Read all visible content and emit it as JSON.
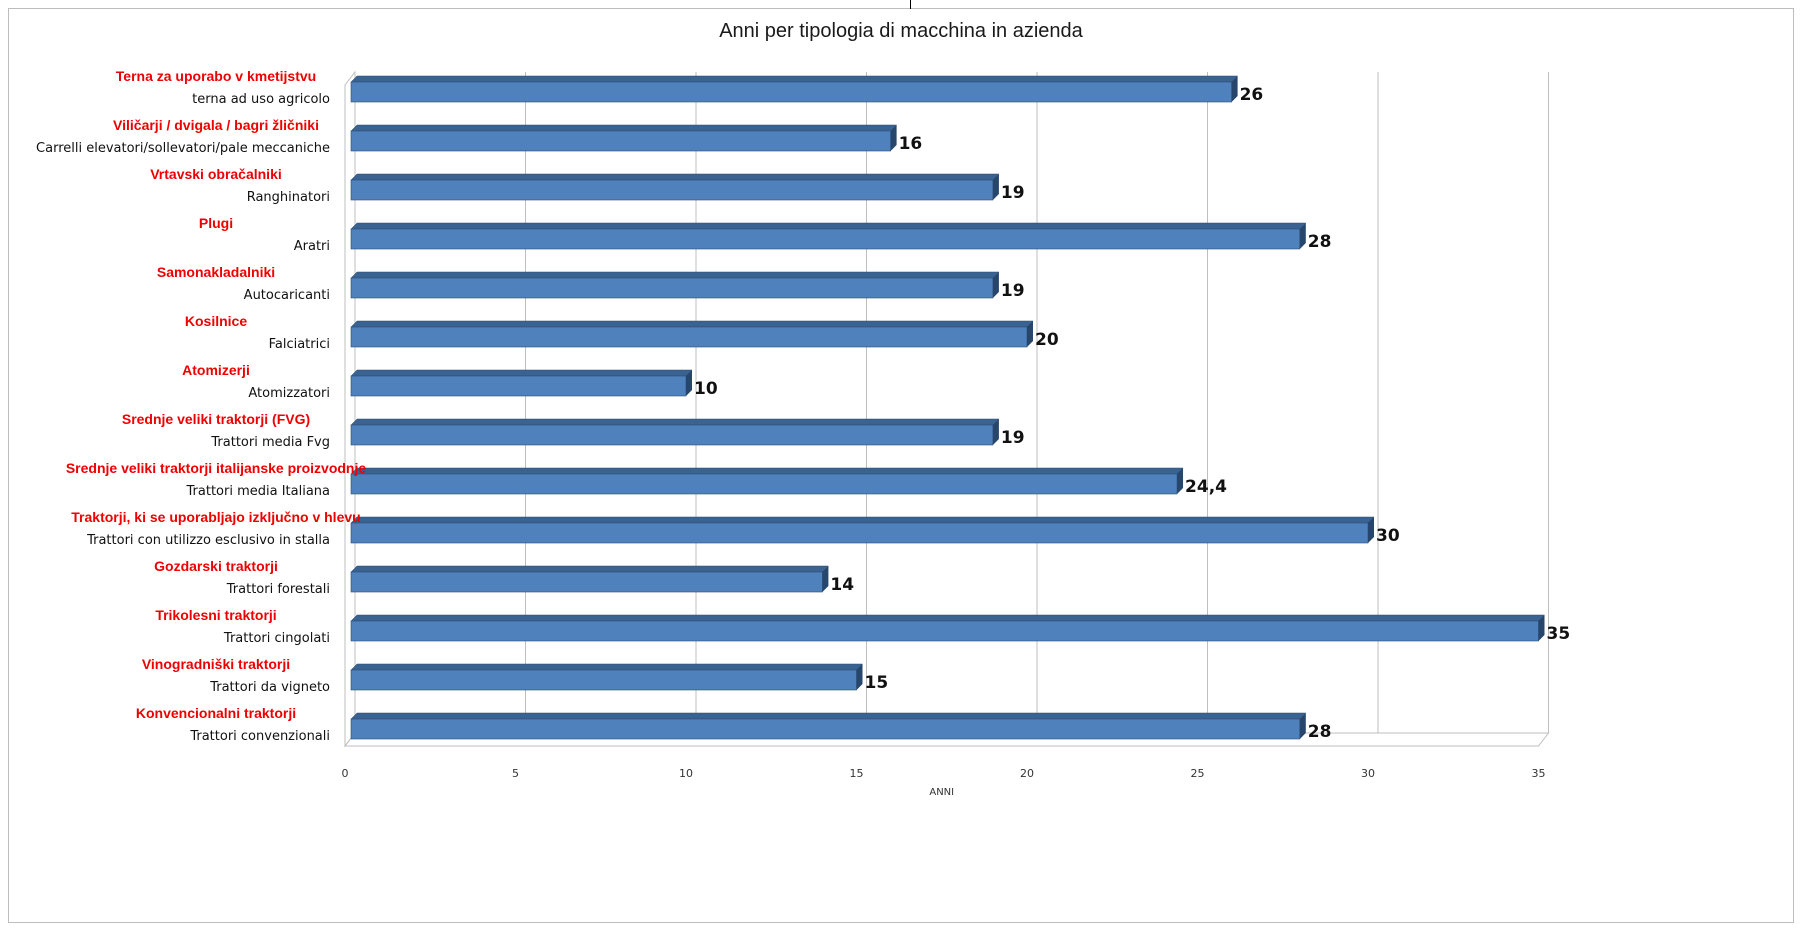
{
  "chart_data": {
    "type": "bar",
    "orientation": "horizontal",
    "title": "Anni per tipologia di macchina in azienda",
    "xlabel": "ANNI",
    "xlim": [
      0,
      35
    ],
    "xticks": [
      0,
      5,
      10,
      15,
      20,
      25,
      30,
      35
    ],
    "grid": true,
    "bar_color": "#4f81bd",
    "label_color_secondary": "#ee0000",
    "categories": [
      {
        "label": "terna ad uso agricolo",
        "label_sl": "Terna za uporabo v kmetijstvu",
        "value": 26,
        "value_label": "26"
      },
      {
        "label": "Carrelli elevatori/sollevatori/pale meccaniche",
        "label_sl": "Viličarji / dvigala / bagri žličniki",
        "value": 16,
        "value_label": "16"
      },
      {
        "label": "Ranghinatori",
        "label_sl": "Vrtavski obračalniki",
        "value": 19,
        "value_label": "19"
      },
      {
        "label": "Aratri",
        "label_sl": "Plugi",
        "value": 28,
        "value_label": "28"
      },
      {
        "label": "Autocaricanti",
        "label_sl": "Samonakladalniki",
        "value": 19,
        "value_label": "19"
      },
      {
        "label": "Falciatrici",
        "label_sl": "Kosilnice",
        "value": 20,
        "value_label": "20"
      },
      {
        "label": "Atomizzatori",
        "label_sl": "Atomizerji",
        "value": 10,
        "value_label": "10"
      },
      {
        "label": "Trattori media Fvg",
        "label_sl": "Srednje veliki traktorji (FVG)",
        "value": 19,
        "value_label": "19"
      },
      {
        "label": "Trattori media Italiana",
        "label_sl": "Srednje veliki traktorji italijanske proizvodnje",
        "value": 24.4,
        "value_label": "24,4"
      },
      {
        "label": "Trattori con utilizzo esclusivo in stalla",
        "label_sl": "Traktorji, ki se uporabljajo izključno v hlevu",
        "value": 30,
        "value_label": "30"
      },
      {
        "label": "Trattori forestali",
        "label_sl": "Gozdarski traktorji",
        "value": 14,
        "value_label": "14"
      },
      {
        "label": "Trattori cingolati",
        "label_sl": "Trikolesni traktorji",
        "value": 35,
        "value_label": "35"
      },
      {
        "label": "Trattori da vigneto",
        "label_sl": "Vinogradniški traktorji",
        "value": 15,
        "value_label": "15"
      },
      {
        "label": "Trattori convenzionali",
        "label_sl": "Konvencionalni traktorji",
        "value": 28,
        "value_label": "28"
      }
    ]
  }
}
